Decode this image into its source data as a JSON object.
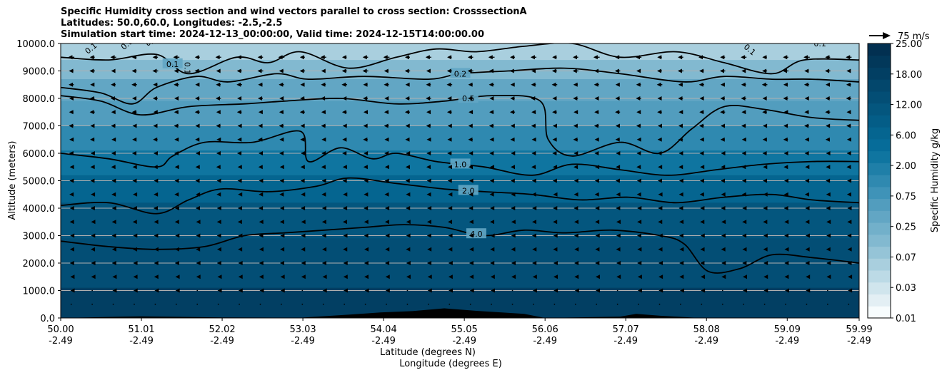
{
  "chart_data": {
    "type": "contour",
    "title_lines": [
      "Specific Humidity cross section and wind vectors parallel to cross section: CrosssectionA",
      "Latitudes: 50.0,60.0, Longitudes: -2.5,-2.5",
      "Simulation start time: 2024-12-13_00:00:00, Valid time: 2024-12-15T14:00:00.00"
    ],
    "xlabel": "Latitude (degrees N)",
    "xlabel2": "Longitude (degrees E)",
    "ylabel": "Altitude (meters)",
    "xlim": [
      50.0,
      59.99
    ],
    "ylim": [
      0,
      10000
    ],
    "x_ticks": [
      50.0,
      51.01,
      52.02,
      53.03,
      54.04,
      55.05,
      56.06,
      57.07,
      58.08,
      59.09,
      59.99
    ],
    "x_tick_labels": [
      "50.00",
      "51.01",
      "52.02",
      "53.03",
      "54.04",
      "55.05",
      "56.06",
      "57.07",
      "58.08",
      "59.09",
      "59.99"
    ],
    "x_tick_labels2": [
      "-2.49",
      "-2.49",
      "-2.49",
      "-2.49",
      "-2.49",
      "-2.49",
      "-2.49",
      "-2.49",
      "-2.49",
      "-2.49",
      "-2.49"
    ],
    "y_ticks": [
      0,
      1000,
      2000,
      3000,
      4000,
      5000,
      6000,
      7000,
      8000,
      9000,
      10000
    ],
    "y_tick_labels": [
      "0.0",
      "1000.0",
      "2000.0",
      "3000.0",
      "4000.0",
      "5000.0",
      "6000.0",
      "7000.0",
      "8000.0",
      "9000.0",
      "10000.0"
    ],
    "grid": "horizontal",
    "colorbar": {
      "label": "Specific Humidity g/kg",
      "levels": [
        0.01,
        0.02,
        0.03,
        0.05,
        0.07,
        0.1,
        0.15,
        0.25,
        0.35,
        0.5,
        0.75,
        1.0,
        1.5,
        2.0,
        3.0,
        4.0,
        6.0,
        8.0,
        12.0,
        15.0,
        18.0,
        22.0,
        25.0
      ],
      "tick_labels": [
        "0.01",
        "0.03",
        "0.07",
        "0.15",
        "0.25",
        "0.50",
        "0.75",
        "1.00",
        "2.00",
        "4.00",
        "6.00",
        "8.00",
        "12.00",
        "15.00",
        "18.00",
        "22.00",
        "25.00"
      ],
      "shown_tick_labels": [
        "0.01",
        "0.03",
        "0.07",
        "0.25",
        "0.75",
        "2.00",
        "6.00",
        "12.00",
        "18.00",
        "25.00"
      ],
      "colors": [
        "#f7fcfd",
        "#e3eff4",
        "#d0e5ed",
        "#bcdae6",
        "#a9cfde",
        "#95c4d7",
        "#82b9d0",
        "#72b0ca",
        "#62a6c4",
        "#529dbe",
        "#3f93b8",
        "#2f89b0",
        "#1f7fa8",
        "#0f75a0",
        "#066c99",
        "#056590",
        "#045d87",
        "#04567e",
        "#034e75",
        "#03476c",
        "#023f63",
        "#02385a",
        "#023051"
      ]
    },
    "quiver_key": {
      "label": "75 m/s",
      "speed": 75
    },
    "contour_lines": [
      {
        "level": 0.1,
        "label": "0.1"
      },
      {
        "level": 0.2,
        "label": "0.2"
      },
      {
        "level": 0.5,
        "label": "0.5"
      },
      {
        "level": 1.0,
        "label": "1.0"
      },
      {
        "level": 2.0,
        "label": "2.0"
      },
      {
        "level": 4.0,
        "label": "4.0"
      }
    ],
    "extra_contour_labels": [
      "0.1",
      "0.0",
      "0.0",
      "0.1",
      "0.1",
      "0.1"
    ],
    "contour_paths": {
      "0.1": [
        [
          50.0,
          9500
        ],
        [
          50.6,
          9400
        ],
        [
          51.2,
          9600
        ],
        [
          51.6,
          8900
        ],
        [
          52.2,
          9500
        ],
        [
          52.6,
          9300
        ],
        [
          53.0,
          9700
        ],
        [
          53.6,
          9100
        ],
        [
          54.2,
          9500
        ],
        [
          54.7,
          9800
        ],
        [
          55.2,
          9700
        ],
        [
          55.8,
          9900
        ],
        [
          56.4,
          10000
        ],
        [
          57.0,
          9500
        ],
        [
          57.7,
          9700
        ],
        [
          58.3,
          9300
        ],
        [
          58.9,
          8900
        ],
        [
          59.3,
          9400
        ],
        [
          59.99,
          9400
        ]
      ],
      "0.2": [
        [
          50.0,
          8400
        ],
        [
          50.5,
          8200
        ],
        [
          50.9,
          7800
        ],
        [
          51.2,
          8400
        ],
        [
          51.7,
          8800
        ],
        [
          52.1,
          8600
        ],
        [
          52.7,
          8900
        ],
        [
          53.1,
          8700
        ],
        [
          53.8,
          8800
        ],
        [
          54.6,
          8700
        ],
        [
          55.0,
          8900
        ],
        [
          55.6,
          9000
        ],
        [
          56.3,
          9100
        ],
        [
          57.0,
          8900
        ],
        [
          57.8,
          8600
        ],
        [
          58.3,
          8800
        ],
        [
          58.9,
          8700
        ],
        [
          59.4,
          8700
        ],
        [
          59.99,
          8600
        ]
      ],
      "0.5": [
        [
          50.0,
          8100
        ],
        [
          50.5,
          7900
        ],
        [
          51.0,
          7400
        ],
        [
          51.6,
          7700
        ],
        [
          52.3,
          7800
        ],
        [
          52.8,
          7900
        ],
        [
          53.5,
          8000
        ],
        [
          54.2,
          7800
        ],
        [
          54.8,
          7900
        ],
        [
          55.4,
          8100
        ],
        [
          56.0,
          7900
        ],
        [
          56.1,
          6500
        ],
        [
          56.4,
          5900
        ],
        [
          57.0,
          6400
        ],
        [
          57.5,
          6000
        ],
        [
          57.9,
          6900
        ],
        [
          58.3,
          7700
        ],
        [
          58.8,
          7600
        ],
        [
          59.4,
          7300
        ],
        [
          59.99,
          7200
        ]
      ],
      "1.0": [
        [
          50.0,
          6000
        ],
        [
          50.6,
          5800
        ],
        [
          51.2,
          5500
        ],
        [
          51.4,
          5900
        ],
        [
          51.8,
          6400
        ],
        [
          52.4,
          6400
        ],
        [
          53.0,
          6800
        ],
        [
          53.1,
          5700
        ],
        [
          53.5,
          6200
        ],
        [
          53.9,
          5800
        ],
        [
          54.2,
          6000
        ],
        [
          54.7,
          5700
        ],
        [
          55.3,
          5500
        ],
        [
          55.9,
          5200
        ],
        [
          56.4,
          5600
        ],
        [
          57.0,
          5400
        ],
        [
          57.6,
          5200
        ],
        [
          58.2,
          5400
        ],
        [
          58.8,
          5600
        ],
        [
          59.4,
          5700
        ],
        [
          59.99,
          5700
        ]
      ],
      "2.0": [
        [
          50.0,
          4100
        ],
        [
          50.6,
          4200
        ],
        [
          51.2,
          3800
        ],
        [
          51.6,
          4300
        ],
        [
          52.0,
          4700
        ],
        [
          52.6,
          4600
        ],
        [
          53.2,
          4800
        ],
        [
          53.6,
          5100
        ],
        [
          54.2,
          4900
        ],
        [
          54.8,
          4700
        ],
        [
          55.3,
          4600
        ],
        [
          55.9,
          4500
        ],
        [
          56.5,
          4300
        ],
        [
          57.1,
          4400
        ],
        [
          57.7,
          4200
        ],
        [
          58.3,
          4400
        ],
        [
          58.9,
          4500
        ],
        [
          59.4,
          4300
        ],
        [
          59.99,
          4200
        ]
      ],
      "4.0": [
        [
          50.0,
          2800
        ],
        [
          50.6,
          2600
        ],
        [
          51.2,
          2500
        ],
        [
          51.8,
          2600
        ],
        [
          52.3,
          3000
        ],
        [
          52.8,
          3100
        ],
        [
          53.3,
          3200
        ],
        [
          53.8,
          3300
        ],
        [
          54.3,
          3400
        ],
        [
          54.8,
          3300
        ],
        [
          55.3,
          3000
        ],
        [
          55.8,
          3200
        ],
        [
          56.3,
          3100
        ],
        [
          56.9,
          3200
        ],
        [
          57.5,
          3000
        ],
        [
          57.8,
          2700
        ],
        [
          58.1,
          1700
        ],
        [
          58.5,
          1800
        ],
        [
          58.9,
          2300
        ],
        [
          59.4,
          2200
        ],
        [
          59.99,
          2000
        ]
      ]
    },
    "shading_bands": [
      {
        "level_index": 20,
        "ymax": 1100
      },
      {
        "level_index": 18,
        "ymax": 2900
      },
      {
        "level_index": 17,
        "ymax": 4200
      },
      {
        "level_index": 15,
        "ymax": 5200
      },
      {
        "level_index": 13,
        "ymax": 6100
      },
      {
        "level_index": 11,
        "ymax": 7000
      },
      {
        "level_index": 9,
        "ymax": 7900
      },
      {
        "level_index": 8,
        "ymax": 8700
      },
      {
        "level_index": 6,
        "ymax": 9400
      },
      {
        "level_index": 4,
        "ymax": 10000
      }
    ],
    "terrain": [
      [
        50.0,
        0
      ],
      [
        50.8,
        50
      ],
      [
        51.0,
        60
      ],
      [
        52.0,
        20
      ],
      [
        53.0,
        10
      ],
      [
        53.6,
        120
      ],
      [
        54.0,
        200
      ],
      [
        54.4,
        250
      ],
      [
        54.8,
        350
      ],
      [
        55.2,
        260
      ],
      [
        55.8,
        150
      ],
      [
        56.06,
        0
      ],
      [
        57.0,
        50
      ],
      [
        57.2,
        150
      ],
      [
        57.5,
        80
      ],
      [
        58.0,
        0
      ],
      [
        59.99,
        0
      ]
    ],
    "wind_vectors": {
      "levels_m": [
        500,
        1000,
        1500,
        2000,
        2500,
        3000,
        3500,
        4000,
        4500,
        5000,
        5500,
        6000,
        6500,
        7000,
        7500,
        8000,
        8500,
        9000,
        9500
      ],
      "u_ms": [
        -5,
        -8,
        -10,
        -12,
        -13,
        -13,
        -14,
        -15,
        -16,
        -17,
        -18,
        -19,
        -20,
        -21,
        -22,
        -23,
        -24,
        -25,
        -27
      ]
    }
  }
}
